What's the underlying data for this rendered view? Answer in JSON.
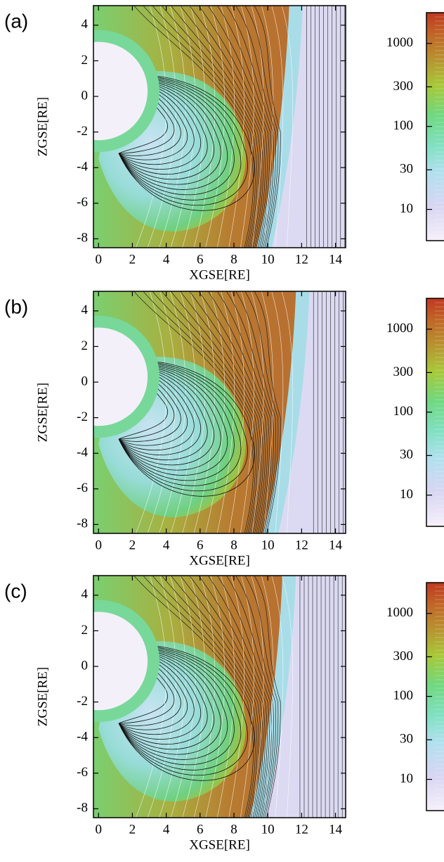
{
  "chart_data": [
    {
      "type": "contour",
      "panel_label": "(a)",
      "xlabel": "XGSE[RE]",
      "ylabel": "ZGSE[RE]",
      "xlim": [
        -0.3,
        14.6
      ],
      "ylim": [
        -8.5,
        5.1
      ],
      "xticks": [
        0,
        2,
        4,
        6,
        8,
        10,
        12,
        14
      ],
      "yticks": [
        4,
        2,
        0,
        -2,
        -4,
        -6,
        -8
      ],
      "colorbar": {
        "log": true,
        "lim": [
          4.2,
          2350
        ],
        "ticks": [
          10,
          30,
          100,
          300,
          1000
        ]
      }
    },
    {
      "type": "contour",
      "panel_label": "(b)",
      "xlabel": "XGSE[RE]",
      "ylabel": "ZGSE[RE]",
      "xlim": [
        -0.3,
        14.6
      ],
      "ylim": [
        -8.5,
        5.1
      ],
      "xticks": [
        0,
        2,
        4,
        6,
        8,
        10,
        12,
        14
      ],
      "yticks": [
        4,
        2,
        0,
        -2,
        -4,
        -6,
        -8
      ],
      "colorbar": {
        "log": true,
        "lim": [
          4.2,
          2350
        ],
        "ticks": [
          10,
          30,
          100,
          300,
          1000
        ]
      }
    },
    {
      "type": "contour",
      "panel_label": "(c)",
      "xlabel": "XGSE[RE]",
      "ylabel": "ZGSE[RE]",
      "xlim": [
        -0.3,
        14.6
      ],
      "ylim": [
        -8.5,
        5.1
      ],
      "xticks": [
        0,
        2,
        4,
        6,
        8,
        10,
        12,
        14
      ],
      "yticks": [
        4,
        2,
        0,
        -2,
        -4,
        -6,
        -8
      ],
      "colorbar": {
        "log": true,
        "lim": [
          4.2,
          2350
        ],
        "ticks": [
          10,
          30,
          100,
          300,
          1000
        ]
      }
    }
  ]
}
